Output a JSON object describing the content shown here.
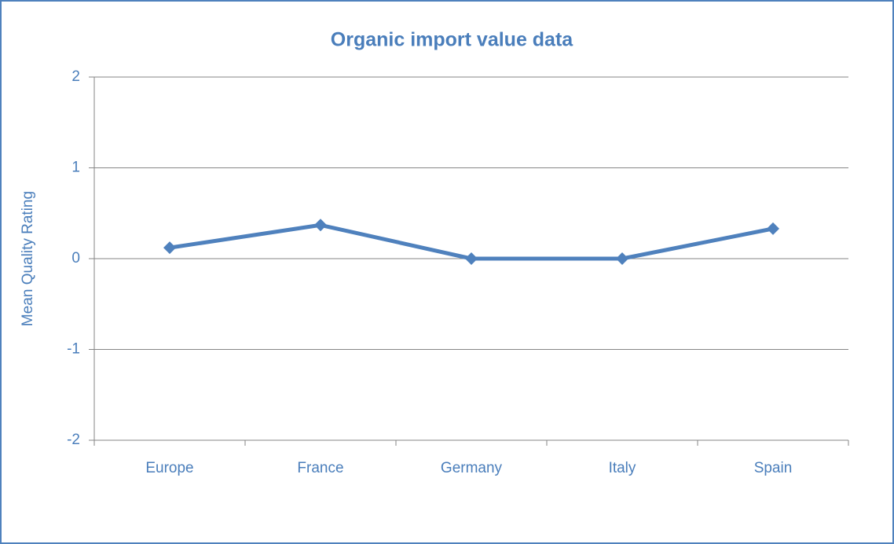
{
  "chart_data": {
    "type": "line",
    "title": "Organic import value data",
    "y_label": "Mean Quality Rating",
    "categories": [
      "Europe",
      "France",
      "Germany",
      "Italy",
      "Spain"
    ],
    "series": [
      {
        "name": "Mean Quality Rating",
        "color": "#4f81bd",
        "values": [
          0.12,
          0.37,
          0,
          0,
          0.33
        ]
      }
    ],
    "ylim": [
      -2,
      2
    ],
    "yticks": [
      -2,
      -1,
      0,
      1,
      2
    ],
    "grid": true
  }
}
